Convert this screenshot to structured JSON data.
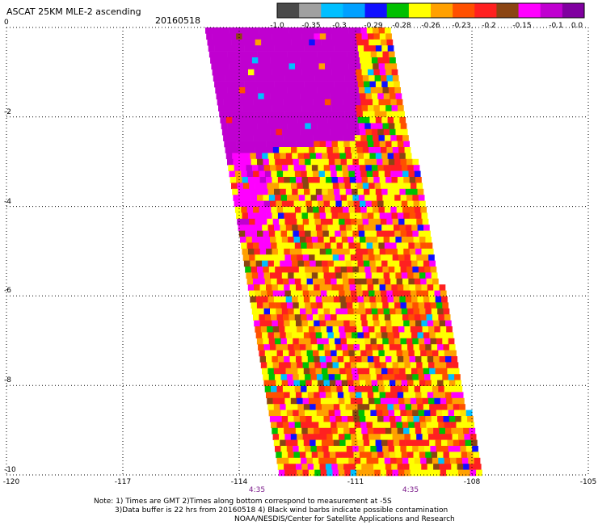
{
  "header": {
    "title": "ASCAT 25KM MLE-2 ascending",
    "date": "20160518"
  },
  "colorbar": {
    "colors": [
      "#4a4a4a",
      "#a0a0a0",
      "#00bfff",
      "#00a0ff",
      "#1010ff",
      "#00c000",
      "#ffff00",
      "#ffa000",
      "#ff5000",
      "#ff2020",
      "#8b4513",
      "#ff00ff",
      "#c000d0",
      "#8000a0"
    ],
    "labels": [
      "-1.0",
      "-0.35",
      "-0.3",
      "-0.29",
      "-0.28",
      "-0.26",
      "-0.23",
      "-0.2",
      "-0.15",
      "-0.1",
      "0.0"
    ]
  },
  "map": {
    "y_ticks": [
      "0",
      "-2",
      "-4",
      "-6",
      "-8",
      "-10"
    ],
    "x_ticks": [
      "-120",
      "-117",
      "-114",
      "-111",
      "-108",
      "-105"
    ],
    "lat_range": [
      -10,
      0
    ],
    "lon_range": [
      -120,
      -105
    ],
    "times": [
      "4:35",
      "4:35"
    ],
    "swath_fill_colors": [
      "#ffff00",
      "#ffa000",
      "#ff2020",
      "#ff5000",
      "#ff00ff",
      "#8b4513",
      "#00c000",
      "#1010ff",
      "#00bfff",
      "#ffe000"
    ],
    "purple_region_color": "#c000d0"
  },
  "notes": {
    "line1": "Note: 1) Times are GMT 2)Times along bottom correspond to measurement at -5S",
    "line2": "3)Data buffer is 22 hrs from 20160518 4) Black wind barbs indicate possible contamination",
    "line3": "NOAA/NESDIS/Center for Satellite Applications and Research"
  }
}
